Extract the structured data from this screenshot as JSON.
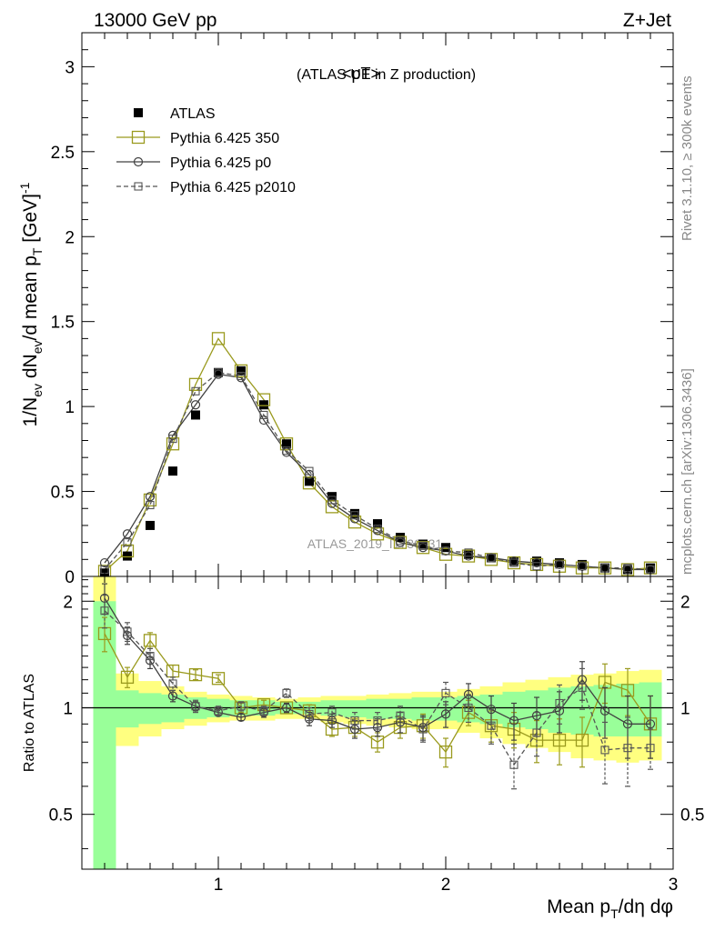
{
  "header": {
    "left": "13000 GeV pp",
    "right": "Z+Jet"
  },
  "side_labels": {
    "rivet": "Rivet 3.1.10, ≥ 300k events",
    "mcplots": "mcplots.cern.ch [arXiv:1306.3436]"
  },
  "chart_data": [
    {
      "type": "line",
      "title": "<pT>",
      "subtitle": "(ATLAS UE in Z production)",
      "watermark": "ATLAS_2019_I1736531",
      "xlabel": "Mean p_T/dη dφ",
      "ylabel": "1/N_ev dN_ev/d mean p_T [GeV]^-1",
      "xlim": [
        0.4,
        3.0
      ],
      "ylim": [
        0,
        3.2
      ],
      "yticks": [
        "0",
        "0.5",
        "1",
        "1.5",
        "2",
        "2.5",
        "3"
      ],
      "xticks": [
        "1",
        "2",
        "3"
      ],
      "legend": {
        "position": "top-left",
        "entries": [
          "ATLAS",
          "Pythia 6.425 350",
          "Pythia 6.425 p0",
          "Pythia 6.425 p2010"
        ]
      },
      "x": [
        0.5,
        0.6,
        0.7,
        0.8,
        0.9,
        1.0,
        1.1,
        1.2,
        1.3,
        1.4,
        1.5,
        1.6,
        1.7,
        1.8,
        1.9,
        2.0,
        2.1,
        2.2,
        2.3,
        2.4,
        2.5,
        2.6,
        2.7,
        2.8,
        2.9
      ],
      "series": [
        {
          "name": "ATLAS",
          "color": "#000000",
          "marker": "filled-square",
          "values": [
            0.02,
            0.12,
            0.3,
            0.62,
            0.95,
            1.2,
            1.21,
            1.01,
            0.78,
            0.56,
            0.47,
            0.37,
            0.31,
            0.23,
            0.19,
            0.17,
            0.13,
            0.11,
            0.09,
            0.09,
            0.08,
            0.07,
            0.05,
            0.04,
            0.05
          ]
        },
        {
          "name": "Pythia 6.425 350",
          "color": "#9a9a1e",
          "marker": "open-square",
          "style": "solid",
          "values": [
            0.03,
            0.15,
            0.45,
            0.78,
            1.13,
            1.4,
            1.21,
            1.04,
            0.78,
            0.55,
            0.41,
            0.32,
            0.25,
            0.2,
            0.17,
            0.13,
            0.12,
            0.1,
            0.08,
            0.07,
            0.06,
            0.05,
            0.05,
            0.04,
            0.05
          ]
        },
        {
          "name": "Pythia 6.425 p0",
          "color": "#404040",
          "marker": "open-circle",
          "style": "solid",
          "values": [
            0.08,
            0.25,
            0.47,
            0.83,
            1.01,
            1.19,
            1.17,
            0.92,
            0.73,
            0.6,
            0.43,
            0.34,
            0.27,
            0.2,
            0.17,
            0.15,
            0.12,
            0.11,
            0.09,
            0.08,
            0.07,
            0.06,
            0.05,
            0.04,
            0.04
          ]
        },
        {
          "name": "Pythia 6.425 p2010",
          "color": "#555555",
          "marker": "open-square-small",
          "style": "dashed",
          "values": [
            0.04,
            0.2,
            0.42,
            0.81,
            1.09,
            1.2,
            1.18,
            0.95,
            0.74,
            0.62,
            0.45,
            0.36,
            0.28,
            0.21,
            0.18,
            0.15,
            0.14,
            0.11,
            0.08,
            0.06,
            0.07,
            0.06,
            0.05,
            0.05,
            0.04
          ]
        }
      ]
    },
    {
      "type": "line",
      "ylabel": "Ratio to ATLAS",
      "ylim": [
        0.35,
        2.35
      ],
      "yscale": "log",
      "yticks": [
        "0.5",
        "1",
        "2"
      ],
      "reference": 1,
      "bands": {
        "x_edges": [
          0.45,
          0.55,
          0.65,
          0.75,
          0.85,
          0.95,
          1.05,
          1.15,
          1.25,
          1.35,
          1.45,
          1.55,
          1.65,
          1.75,
          1.85,
          1.95,
          2.05,
          2.15,
          2.25,
          2.35,
          2.45,
          2.55,
          2.65,
          2.75,
          2.85,
          2.95
        ],
        "yellow_lo": [
          0.3,
          0.78,
          0.83,
          0.87,
          0.89,
          0.91,
          0.92,
          0.92,
          0.93,
          0.93,
          0.91,
          0.9,
          0.89,
          0.88,
          0.87,
          0.87,
          0.85,
          0.82,
          0.79,
          0.77,
          0.75,
          0.72,
          0.71,
          0.7,
          0.71
        ],
        "yellow_hi": [
          2.4,
          1.25,
          1.19,
          1.15,
          1.11,
          1.09,
          1.08,
          1.07,
          1.06,
          1.07,
          1.08,
          1.08,
          1.09,
          1.1,
          1.11,
          1.11,
          1.13,
          1.15,
          1.18,
          1.2,
          1.22,
          1.24,
          1.25,
          1.27,
          1.28
        ],
        "green_lo": [
          0.3,
          0.88,
          0.9,
          0.91,
          0.93,
          0.94,
          0.95,
          0.95,
          0.96,
          0.96,
          0.95,
          0.94,
          0.93,
          0.93,
          0.92,
          0.92,
          0.91,
          0.9,
          0.88,
          0.87,
          0.85,
          0.84,
          0.83,
          0.83,
          0.83
        ],
        "green_hi": [
          2.0,
          1.12,
          1.1,
          1.09,
          1.07,
          1.06,
          1.05,
          1.05,
          1.04,
          1.04,
          1.05,
          1.05,
          1.06,
          1.06,
          1.07,
          1.07,
          1.08,
          1.09,
          1.11,
          1.12,
          1.14,
          1.15,
          1.16,
          1.17,
          1.18
        ]
      },
      "series": [
        {
          "name": "Pythia 6.425 350",
          "values": [
            1.62,
            1.22,
            1.55,
            1.27,
            1.24,
            1.21,
            1.0,
            1.02,
            1.0,
            0.98,
            0.87,
            0.88,
            0.8,
            0.88,
            0.89,
            0.75,
            0.97,
            0.89,
            0.87,
            0.81,
            0.81,
            0.81,
            1.18,
            1.12,
            0.9
          ],
          "errors": [
            0.18,
            0.08,
            0.08,
            0.05,
            0.04,
            0.03,
            0.03,
            0.03,
            0.03,
            0.04,
            0.04,
            0.05,
            0.05,
            0.06,
            0.07,
            0.07,
            0.08,
            0.09,
            0.1,
            0.11,
            0.12,
            0.13,
            0.15,
            0.17,
            0.18
          ]
        },
        {
          "name": "Pythia 6.425 p0",
          "values": [
            2.04,
            1.6,
            1.36,
            1.08,
            1.01,
            0.97,
            0.94,
            0.97,
            1.0,
            0.93,
            0.92,
            0.87,
            0.88,
            0.91,
            0.88,
            0.96,
            1.09,
            0.99,
            0.92,
            0.95,
            0.98,
            1.2,
            0.98,
            0.9,
            0.9
          ],
          "errors": [
            0.2,
            0.09,
            0.07,
            0.04,
            0.03,
            0.02,
            0.02,
            0.03,
            0.03,
            0.04,
            0.04,
            0.05,
            0.05,
            0.06,
            0.07,
            0.08,
            0.08,
            0.09,
            0.11,
            0.12,
            0.13,
            0.15,
            0.16,
            0.18,
            0.18
          ]
        },
        {
          "name": "Pythia 6.425 p2010",
          "values": [
            1.88,
            1.64,
            1.4,
            1.17,
            1.01,
            0.98,
            1.01,
            0.98,
            1.1,
            0.96,
            0.97,
            0.92,
            0.92,
            0.95,
            0.87,
            1.1,
            1.0,
            0.89,
            0.69,
            0.85,
            1.03,
            1.14,
            0.76,
            0.77,
            0.77
          ],
          "errors": [
            0.2,
            0.1,
            0.07,
            0.05,
            0.04,
            0.03,
            0.03,
            0.03,
            0.03,
            0.04,
            0.04,
            0.05,
            0.05,
            0.06,
            0.07,
            0.08,
            0.09,
            0.1,
            0.1,
            0.12,
            0.13,
            0.15,
            0.15,
            0.17,
            0.1
          ]
        }
      ]
    }
  ]
}
